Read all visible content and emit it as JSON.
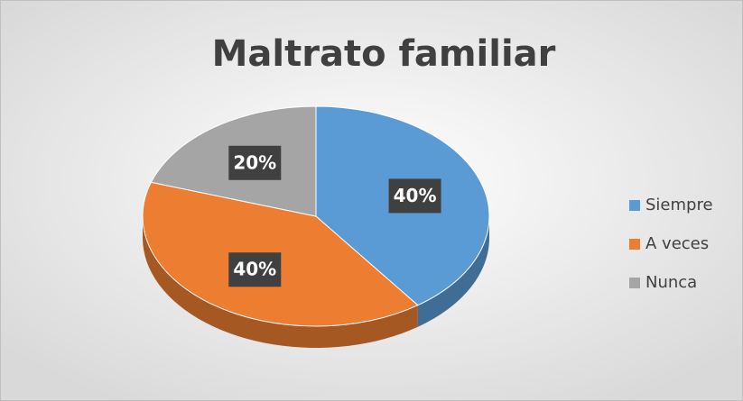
{
  "chart_data": {
    "type": "pie",
    "title": "Maltrato familiar",
    "categories": [
      "Siempre",
      "A veces",
      "Nunca"
    ],
    "values": [
      40,
      40,
      20
    ],
    "value_labels": [
      "40%",
      "40%",
      "20%"
    ],
    "colors": [
      "#5b9bd5",
      "#ed7d31",
      "#a5a5a5"
    ],
    "legend": "right"
  }
}
